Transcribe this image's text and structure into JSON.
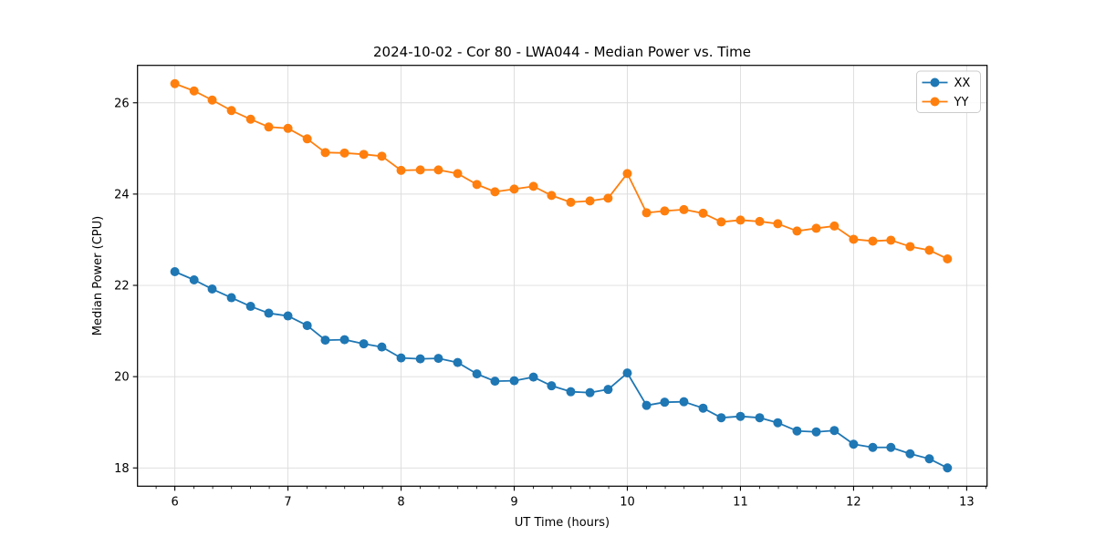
{
  "figure": {
    "background": "#ffffff",
    "spine_color": "#000000",
    "grid_color": "#dcdcdc",
    "legend_border_color": "#cccccc"
  },
  "chart_data": {
    "type": "line",
    "title": "2024-10-02 - Cor 80 - LWA044 - Median Power vs. Time",
    "xlabel": "UT Time (hours)",
    "ylabel": "Median Power (CPU)",
    "xlim": [
      5.67,
      13.18
    ],
    "ylim": [
      17.6,
      26.82
    ],
    "x_ticks": [
      6,
      7,
      8,
      9,
      10,
      11,
      12,
      13
    ],
    "x_minor_tick_step": 0.1667,
    "y_ticks": [
      18,
      20,
      22,
      24,
      26
    ],
    "grid": true,
    "legend_position": "upper right",
    "marker": "circle",
    "x": [
      6.0,
      6.17,
      6.33,
      6.5,
      6.67,
      6.83,
      7.0,
      7.17,
      7.33,
      7.5,
      7.67,
      7.83,
      8.0,
      8.17,
      8.33,
      8.5,
      8.67,
      8.83,
      9.0,
      9.17,
      9.33,
      9.5,
      9.67,
      9.83,
      10.0,
      10.17,
      10.33,
      10.5,
      10.67,
      10.83,
      11.0,
      11.17,
      11.33,
      11.5,
      11.67,
      11.83,
      12.0,
      12.17,
      12.33,
      12.5,
      12.67,
      12.83
    ],
    "series": [
      {
        "name": "XX",
        "color": "#1f77b4",
        "values": [
          22.3,
          22.12,
          21.92,
          21.73,
          21.54,
          21.39,
          21.33,
          21.12,
          20.8,
          20.81,
          20.72,
          20.65,
          20.41,
          20.39,
          20.4,
          20.31,
          20.06,
          19.9,
          19.91,
          19.99,
          19.8,
          19.67,
          19.65,
          19.72,
          20.08,
          19.37,
          19.44,
          19.45,
          19.31,
          19.1,
          19.13,
          19.1,
          18.99,
          18.81,
          18.79,
          18.82,
          18.52,
          18.45,
          18.45,
          18.31,
          18.2,
          18.0
        ]
      },
      {
        "name": "YY",
        "color": "#ff7f0e",
        "values": [
          26.42,
          26.26,
          26.06,
          25.83,
          25.64,
          25.47,
          25.44,
          25.21,
          24.91,
          24.9,
          24.87,
          24.83,
          24.52,
          24.53,
          24.53,
          24.45,
          24.21,
          24.05,
          24.11,
          24.17,
          23.97,
          23.82,
          23.85,
          23.91,
          24.45,
          23.59,
          23.63,
          23.66,
          23.58,
          23.39,
          23.43,
          23.4,
          23.35,
          23.19,
          23.25,
          23.3,
          23.01,
          22.97,
          22.99,
          22.85,
          22.77,
          22.58
        ]
      }
    ]
  }
}
